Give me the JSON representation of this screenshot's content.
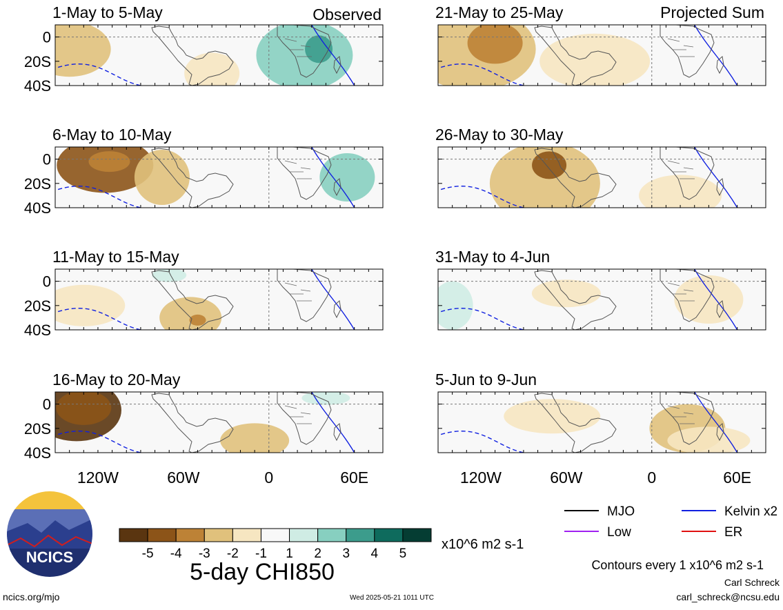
{
  "figure": {
    "observed_label": "Observed",
    "projected_label": "Projected Sum",
    "panels_left": [
      "1-May to 5-May",
      "6-May to 10-May",
      "11-May to 15-May",
      "16-May to 20-May"
    ],
    "panels_right": [
      "21-May to 25-May",
      "26-May to 30-May",
      "31-May to 4-Jun",
      "5-Jun to 9-Jun"
    ],
    "lat_labels": [
      "0",
      "20S",
      "40S"
    ],
    "lon_labels": [
      "120W",
      "60W",
      "0",
      "60E"
    ]
  },
  "colorbar": {
    "title": "5-day CHI850",
    "units": "x10^6 m2 s-1",
    "tick_labels": [
      "-5",
      "-4",
      "-3",
      "-2",
      "-1",
      "1",
      "2",
      "3",
      "4",
      "5"
    ],
    "colors": [
      "#5a3510",
      "#8c5418",
      "#bd8236",
      "#e0c17c",
      "#f6e6c1",
      "#f8f8f8",
      "#cfece4",
      "#87cfc0",
      "#3c9c8c",
      "#0e6b5d",
      "#053d33"
    ]
  },
  "legend": {
    "items": [
      {
        "label": "MJO",
        "color": "#000000"
      },
      {
        "label": "Kelvin x2",
        "color": "#1020e0"
      },
      {
        "label": "Low",
        "color": "#a020f0"
      },
      {
        "label": "ER",
        "color": "#e01010"
      }
    ],
    "contours_note": "Contours every 1 x10^6 m2 s-1"
  },
  "logo": {
    "text": "NCICS"
  },
  "footer": {
    "left": "ncics.org/mjo",
    "timestamp": "Wed 2025-05-21 1011 UTC",
    "author": "Carl Schreck",
    "email": "carl_schreck@ncsu.edu"
  }
}
